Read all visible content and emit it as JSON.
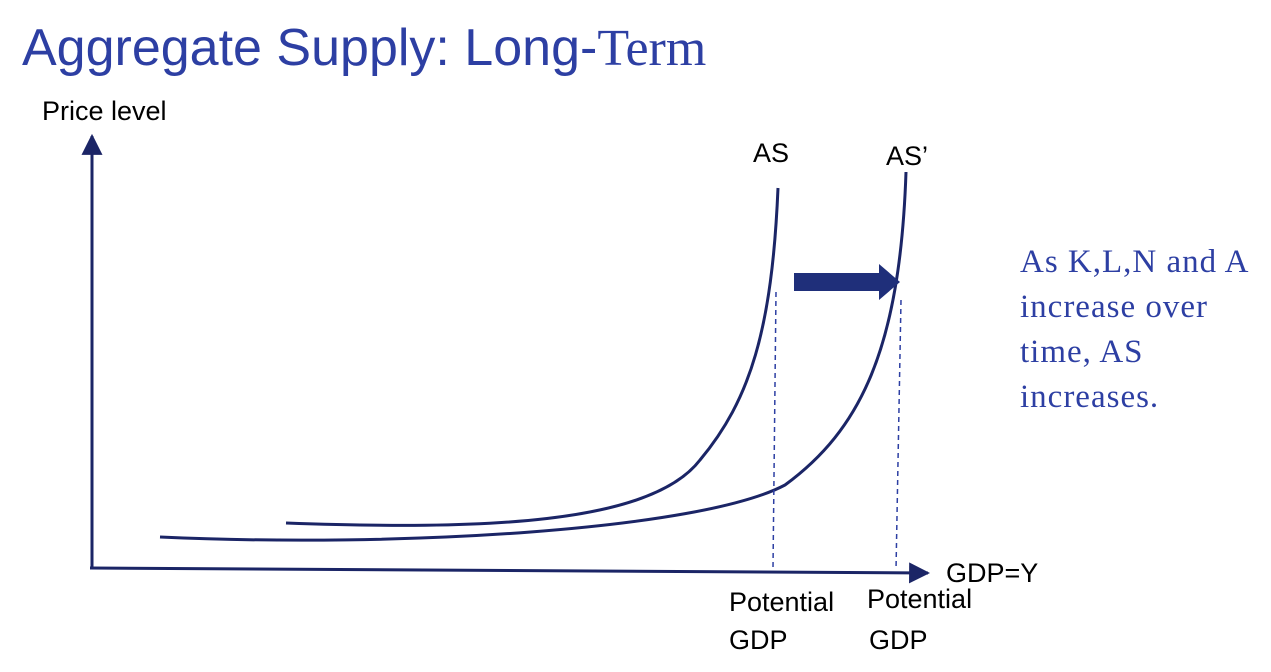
{
  "title": {
    "sans_part": "Aggregate Supply: Long-",
    "serif_part": "Term"
  },
  "axes": {
    "y_label": "Price level",
    "x_label": "GDP=Y"
  },
  "curves": {
    "as_label": "AS",
    "as_shifted_label": "AS’"
  },
  "potential_labels": [
    {
      "line1": "Potential",
      "line2": "GDP"
    },
    {
      "line1": "Potential",
      "line2": "GDP"
    }
  ],
  "note": "As K,L,N and A increase over time, AS increases.",
  "colors": {
    "title": "#2d3fa3",
    "curve": "#1b2566",
    "arrow": "#1f2f7a",
    "note": "#2d3fa3"
  }
}
